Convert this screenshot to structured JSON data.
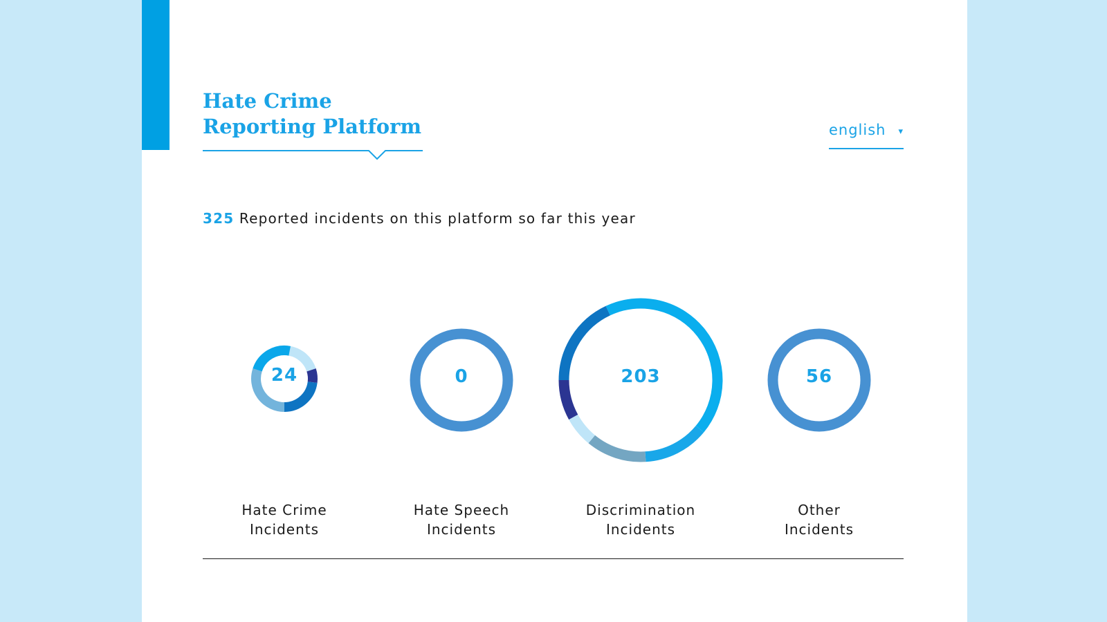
{
  "header": {
    "title_line1": "Hate Crime",
    "title_line2": "Reporting Platform",
    "language": "english",
    "language_arrow": "▾"
  },
  "summary": {
    "count": "325",
    "text": "Reported incidents on this platform so far this year"
  },
  "colors": {
    "accent": "#00a0e3",
    "background": "#c8e9f9",
    "ring_plain": "#4791d2"
  },
  "chart_data": {
    "type": "donut",
    "items": [
      {
        "value": "24",
        "label_line1": "Hate Crime",
        "label_line2": "Incidents",
        "segments": [
          {
            "from": 0.03,
            "to": 0.2,
            "color": "#bfe5f8"
          },
          {
            "from": 0.2,
            "to": 0.27,
            "color": "#2b3592"
          },
          {
            "from": 0.27,
            "to": 0.5,
            "color": "#0e74c2"
          },
          {
            "from": 0.5,
            "to": 0.8,
            "color": "#73b4dc"
          },
          {
            "from": 0.8,
            "to": 1.03,
            "color": "#0aa7ea"
          }
        ]
      },
      {
        "value": "0",
        "label_line1": "Hate Speech",
        "label_line2": "Incidents",
        "segments": [
          {
            "from": 0.0,
            "to": 1.0,
            "color": "#4791d2"
          }
        ]
      },
      {
        "value": "203",
        "label_line1": "Discrimination",
        "label_line2": "Incidents",
        "segments": [
          {
            "from": -0.07,
            "to": 0.36,
            "color": "#0aaeee"
          },
          {
            "from": 0.36,
            "to": 0.49,
            "color": "#19a7e9"
          },
          {
            "from": 0.49,
            "to": 0.61,
            "color": "#74a6c2"
          },
          {
            "from": 0.61,
            "to": 0.67,
            "color": "#bfe5f8"
          },
          {
            "from": 0.67,
            "to": 0.75,
            "color": "#2b3592"
          },
          {
            "from": 0.75,
            "to": 0.93,
            "color": "#0e74c2"
          }
        ]
      },
      {
        "value": "56",
        "label_line1": "Other",
        "label_line2": "Incidents",
        "segments": [
          {
            "from": 0.0,
            "to": 1.0,
            "color": "#4791d2"
          }
        ]
      }
    ]
  }
}
